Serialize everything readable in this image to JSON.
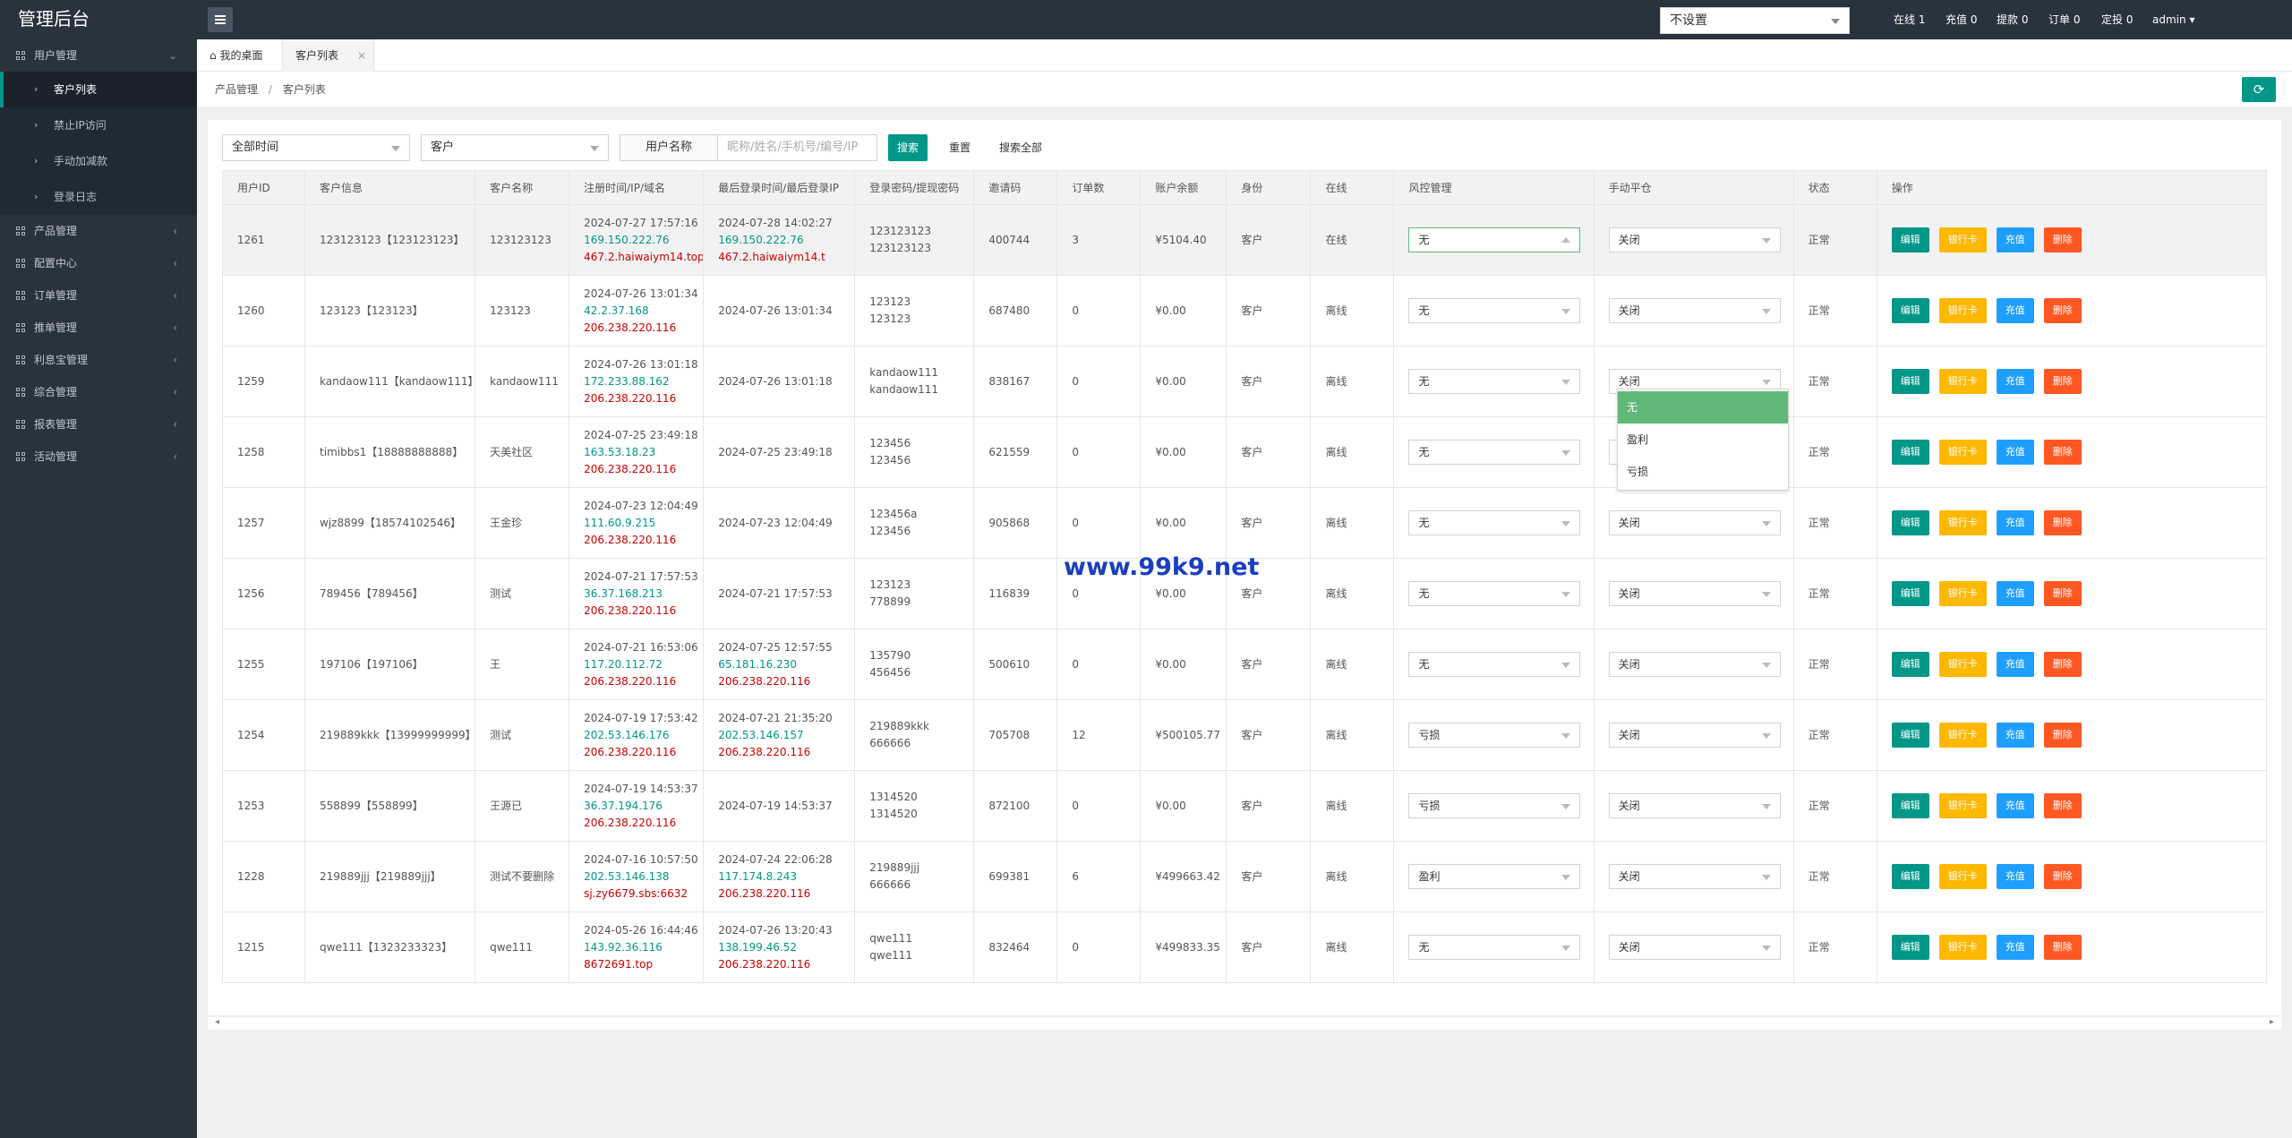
{
  "app": {
    "title": "管理后台"
  },
  "sidebar": {
    "groups": [
      {
        "label": "用户管理",
        "arrow": "⌄"
      },
      {
        "label": "产品管理",
        "arrow": "‹"
      },
      {
        "label": "配置中心",
        "arrow": "‹"
      },
      {
        "label": "订单管理",
        "arrow": "‹"
      },
      {
        "label": "推单管理",
        "arrow": "‹"
      },
      {
        "label": "利息宝管理",
        "arrow": "‹"
      },
      {
        "label": "综合管理",
        "arrow": "‹"
      },
      {
        "label": "报表管理",
        "arrow": "‹"
      },
      {
        "label": "活动管理",
        "arrow": "‹"
      }
    ],
    "subitems": [
      {
        "label": "客户列表"
      },
      {
        "label": "禁止IP访问"
      },
      {
        "label": "手动加减款"
      },
      {
        "label": "登录日志"
      }
    ]
  },
  "topbar": {
    "select_value": "不设置",
    "stats": [
      "在线 1",
      "充值 0",
      "提款 0",
      "订单 0",
      "定投 0",
      "admin"
    ],
    "user_caret": "▾"
  },
  "tabs": [
    {
      "label": "我的桌面"
    },
    {
      "label": "客户列表"
    }
  ],
  "breadcrumb": {
    "items": [
      "产品管理",
      "客户列表"
    ],
    "sep": "/"
  },
  "filters": {
    "time_select": "全部时间",
    "role_select": "客户",
    "name_label": "用户名称",
    "name_placeholder": "昵称/姓名/手机号/编号/IP",
    "search": "搜索",
    "reset": "重置",
    "search_all": "搜索全部"
  },
  "table": {
    "headers": [
      "用户ID",
      "客户信息",
      "客户名称",
      "注册时间/IP/域名",
      "最后登录时间/最后登录IP",
      "登录密码/提现密码",
      "邀请码",
      "订单数",
      "账户余额",
      "身份",
      "在线",
      "风控管理",
      "手动平仓",
      "状态",
      "操作"
    ],
    "buttons": {
      "edit": "编辑",
      "bank": "银行卡",
      "charge": "充值",
      "delete": "删除"
    },
    "rows": [
      {
        "id": "1261",
        "info": "123123123【123123123】",
        "name": "123123123",
        "reg_time": "2024-07-27 17:57:16",
        "reg_ip": "169.150.222.76",
        "reg_domain": "467.2.haiwaiym14.top",
        "login_time": "2024-07-28 14:02:27",
        "login_ip": "169.150.222.76",
        "login_domain": "467.2.haiwaiym14.t",
        "pwd1": "123123123",
        "pwd2": "123123123",
        "invite": "400744",
        "orders": "3",
        "balance": "¥5104.40",
        "role": "客户",
        "online": "在线",
        "risk": "无",
        "manual": "关闭",
        "status": "正常"
      },
      {
        "id": "1260",
        "info": "123123【123123】",
        "name": "123123",
        "reg_time": "2024-07-26 13:01:34",
        "reg_ip": "42.2.37.168",
        "reg_domain": "206.238.220.116",
        "login_time": "2024-07-26 13:01:34",
        "login_ip": "",
        "login_domain": "",
        "pwd1": "123123",
        "pwd2": "123123",
        "invite": "687480",
        "orders": "0",
        "balance": "¥0.00",
        "role": "客户",
        "online": "离线",
        "risk": "无",
        "manual": "关闭",
        "status": "正常"
      },
      {
        "id": "1259",
        "info": "kandaow111【kandaow111】",
        "name": "kandaow111",
        "reg_time": "2024-07-26 13:01:18",
        "reg_ip": "172.233.88.162",
        "reg_domain": "206.238.220.116",
        "login_time": "2024-07-26 13:01:18",
        "login_ip": "",
        "login_domain": "",
        "pwd1": "kandaow111",
        "pwd2": "kandaow111",
        "invite": "838167",
        "orders": "0",
        "balance": "¥0.00",
        "role": "客户",
        "online": "离线",
        "risk": "无",
        "manual": "关闭",
        "status": "正常"
      },
      {
        "id": "1258",
        "info": "timibbs1【18888888888】",
        "name": "天美社区",
        "reg_time": "2024-07-25 23:49:18",
        "reg_ip": "163.53.18.23",
        "reg_domain": "206.238.220.116",
        "login_time": "2024-07-25 23:49:18",
        "login_ip": "",
        "login_domain": "",
        "pwd1": "123456",
        "pwd2": "123456",
        "invite": "621559",
        "orders": "0",
        "balance": "¥0.00",
        "role": "客户",
        "online": "离线",
        "risk": "无",
        "manual": "关闭",
        "status": "正常"
      },
      {
        "id": "1257",
        "info": "wjz8899【18574102546】",
        "name": "王金珍",
        "reg_time": "2024-07-23 12:04:49",
        "reg_ip": "111.60.9.215",
        "reg_domain": "206.238.220.116",
        "login_time": "2024-07-23 12:04:49",
        "login_ip": "",
        "login_domain": "",
        "pwd1": "123456a",
        "pwd2": "123456",
        "invite": "905868",
        "orders": "0",
        "balance": "¥0.00",
        "role": "客户",
        "online": "离线",
        "risk": "无",
        "manual": "关闭",
        "status": "正常"
      },
      {
        "id": "1256",
        "info": "789456【789456】",
        "name": "测试",
        "reg_time": "2024-07-21 17:57:53",
        "reg_ip": "36.37.168.213",
        "reg_domain": "206.238.220.116",
        "login_time": "2024-07-21 17:57:53",
        "login_ip": "",
        "login_domain": "",
        "pwd1": "123123",
        "pwd2": "778899",
        "invite": "116839",
        "orders": "0",
        "balance": "¥0.00",
        "role": "客户",
        "online": "离线",
        "risk": "无",
        "manual": "关闭",
        "status": "正常"
      },
      {
        "id": "1255",
        "info": "197106【197106】",
        "name": "王",
        "reg_time": "2024-07-21 16:53:06",
        "reg_ip": "117.20.112.72",
        "reg_domain": "206.238.220.116",
        "login_time": "2024-07-25 12:57:55",
        "login_ip": "65.181.16.230",
        "login_domain": "206.238.220.116",
        "pwd1": "135790",
        "pwd2": "456456",
        "invite": "500610",
        "orders": "0",
        "balance": "¥0.00",
        "role": "客户",
        "online": "离线",
        "risk": "无",
        "manual": "关闭",
        "status": "正常"
      },
      {
        "id": "1254",
        "info": "219889kkk【13999999999】",
        "name": "测试",
        "reg_time": "2024-07-19 17:53:42",
        "reg_ip": "202.53.146.176",
        "reg_domain": "206.238.220.116",
        "login_time": "2024-07-21 21:35:20",
        "login_ip": "202.53.146.157",
        "login_domain": "206.238.220.116",
        "pwd1": "219889kkk",
        "pwd2": "666666",
        "invite": "705708",
        "orders": "12",
        "balance": "¥500105.77",
        "role": "客户",
        "online": "离线",
        "risk": "亏损",
        "manual": "关闭",
        "status": "正常"
      },
      {
        "id": "1253",
        "info": "558899【558899】",
        "name": "王源已",
        "reg_time": "2024-07-19 14:53:37",
        "reg_ip": "36.37.194.176",
        "reg_domain": "206.238.220.116",
        "login_time": "2024-07-19 14:53:37",
        "login_ip": "",
        "login_domain": "",
        "pwd1": "1314520",
        "pwd2": "1314520",
        "invite": "872100",
        "orders": "0",
        "balance": "¥0.00",
        "role": "客户",
        "online": "离线",
        "risk": "亏损",
        "manual": "关闭",
        "status": "正常"
      },
      {
        "id": "1228",
        "info": "219889jjj【219889jjj】",
        "name": "测试不要删除",
        "reg_time": "2024-07-16 10:57:50",
        "reg_ip": "202.53.146.138",
        "reg_domain": "sj.zy6679.sbs:6632",
        "login_time": "2024-07-24 22:06:28",
        "login_ip": "117.174.8.243",
        "login_domain": "206.238.220.116",
        "pwd1": "219889jjj",
        "pwd2": "666666",
        "invite": "699381",
        "orders": "6",
        "balance": "¥499663.42",
        "role": "客户",
        "online": "离线",
        "risk": "盈利",
        "manual": "关闭",
        "status": "正常"
      },
      {
        "id": "1215",
        "info": "qwe111【1323233323】",
        "name": "qwe111",
        "reg_time": "2024-05-26 16:44:46",
        "reg_ip": "143.92.36.116",
        "reg_domain": "8672691.top",
        "login_time": "2024-07-26 13:20:43",
        "login_ip": "138.199.46.52",
        "login_domain": "206.238.220.116",
        "pwd1": "qwe111",
        "pwd2": "qwe111",
        "invite": "832464",
        "orders": "0",
        "balance": "¥499833.35",
        "role": "客户",
        "online": "离线",
        "risk": "无",
        "manual": "关闭",
        "status": "正常"
      }
    ]
  },
  "dropdown": {
    "options": [
      "无",
      "盈利",
      "亏损"
    ],
    "selected_index": 0
  },
  "watermark": "www.99k9.net",
  "scroll": {
    "left": "◂",
    "right": "▸"
  },
  "colors": {
    "primary": "#009688",
    "sidebar": "#28333e",
    "warning": "#ffb800",
    "info": "#1e9fff",
    "danger": "#ff5722",
    "selected": "#5fb878"
  }
}
